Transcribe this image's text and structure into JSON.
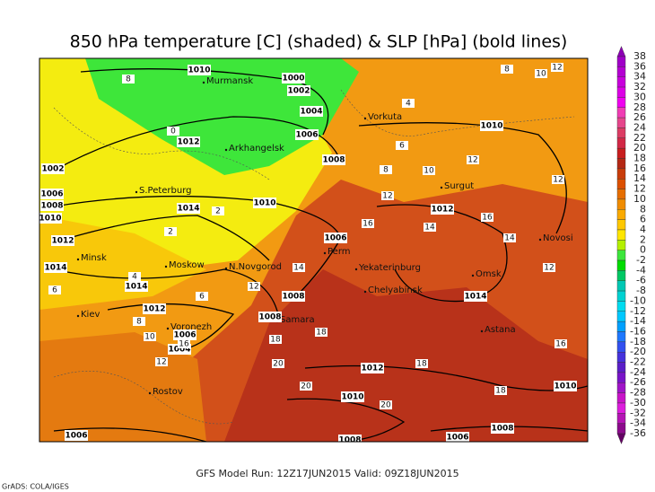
{
  "title": "850 hPa temperature [C] (shaded) & SLP [hPa] (bold lines)",
  "colorbar": {
    "labels": [
      38,
      36,
      34,
      32,
      30,
      28,
      26,
      24,
      22,
      20,
      18,
      16,
      14,
      12,
      10,
      8,
      6,
      4,
      2,
      0,
      -2,
      -4,
      -6,
      -8,
      -10,
      -12,
      -14,
      -16,
      -18,
      -20,
      -22,
      -24,
      -26,
      -28,
      -30,
      -32,
      -34,
      -36
    ],
    "colors": [
      "#8c00b4",
      "#a000c8",
      "#b400d2",
      "#c800dc",
      "#dc00e6",
      "#f000f0",
      "#f03cb4",
      "#e6468c",
      "#dc3c64",
      "#d22846",
      "#c81e1e",
      "#b42814",
      "#c83c0a",
      "#dc5000",
      "#e66e00",
      "#f08c00",
      "#faaa00",
      "#ffc800",
      "#ffe600",
      "#b4f000",
      "#3ce63c",
      "#00dc00",
      "#00c864",
      "#00c8b4",
      "#00d2d2",
      "#00dcf0",
      "#00c8ff",
      "#00a0ff",
      "#1e78ff",
      "#3250f0",
      "#4632dc",
      "#5a1ec8",
      "#7814c8",
      "#a014c8",
      "#c814c8",
      "#dc1edc",
      "#b414b4",
      "#8c0a8c",
      "#640064"
    ]
  },
  "cities": [
    "Murmansk",
    "Arkhangelsk",
    "Vorkuta",
    "S.Peterburg",
    "Surgut",
    "Novosi",
    "Minsk",
    "Moskow",
    "N.Novgorod",
    "Perm",
    "Yekaterinburg",
    "Omsk",
    "Chelyabinsk",
    "Kiev",
    "Samara",
    "Voronezh",
    "Astana",
    "Rostov"
  ],
  "isobar_labels": [
    1010,
    1000,
    1002,
    1004,
    1006,
    1008,
    1012,
    1002,
    1006,
    1008,
    1010,
    1012,
    1014,
    1014,
    1014,
    1010,
    1012,
    1006,
    1008,
    1008,
    1006,
    1004,
    1010,
    1012,
    1014,
    1012,
    1010,
    1010,
    1006,
    1008,
    1006,
    1008
  ],
  "temperature_labels": [
    8,
    0,
    12,
    10,
    8,
    4,
    6,
    8,
    10,
    12,
    12,
    12,
    14,
    16,
    16,
    14,
    12,
    14,
    12,
    6,
    8,
    10,
    16,
    12,
    18,
    18,
    20,
    18,
    20,
    20,
    18,
    16,
    2,
    2,
    4,
    6
  ],
  "footer": {
    "model_run": "GFS Model Run: 12Z17JUN2015  Valid: 09Z18JUN2015",
    "credit": "GrADS: COLA/IGES"
  }
}
